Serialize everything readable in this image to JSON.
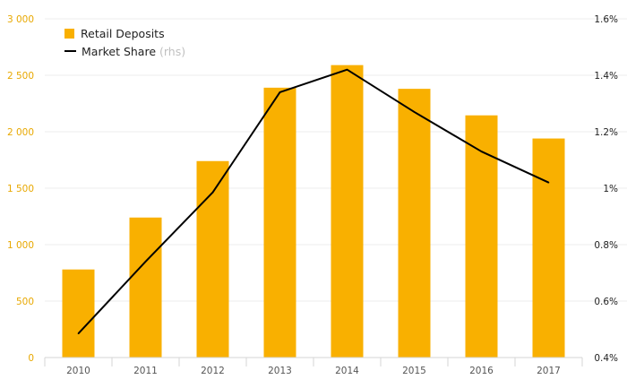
{
  "chart_data": {
    "type": "bar",
    "categories": [
      "2010",
      "2011",
      "2012",
      "2013",
      "2014",
      "2015",
      "2016",
      "2017"
    ],
    "series": [
      {
        "name": "Retail Deposits",
        "type": "bar",
        "axis": "left",
        "values": [
          780,
          1240,
          1740,
          2390,
          2590,
          2380,
          2145,
          1940
        ]
      },
      {
        "name": "Market Share",
        "type": "line",
        "axis": "right",
        "values": [
          0.485,
          0.74,
          0.985,
          1.34,
          1.42,
          1.27,
          1.13,
          1.02
        ]
      }
    ],
    "legend_note": "(rhs)",
    "y_left": {
      "ylim": [
        0,
        3000
      ],
      "ticks": [
        0,
        500,
        1000,
        1500,
        2000,
        2500,
        3000
      ],
      "tick_labels": [
        "0",
        "500",
        "1 000",
        "1 500",
        "2 000",
        "2 500",
        "3 000"
      ]
    },
    "y_right": {
      "ylim": [
        0.4,
        1.6
      ],
      "ticks": [
        0.4,
        0.6,
        0.8,
        1.0,
        1.2,
        1.4,
        1.6
      ],
      "tick_labels": [
        "0.4%",
        "0.6%",
        "0.8%",
        "1%",
        "1.2%",
        "1.4%",
        "1.6%"
      ]
    },
    "grid": true,
    "legend_position": "top-left",
    "colors": {
      "bar": "#f9b000",
      "line": "#000000",
      "left_ticks": "#e8a800",
      "grid": "#ececec"
    }
  }
}
